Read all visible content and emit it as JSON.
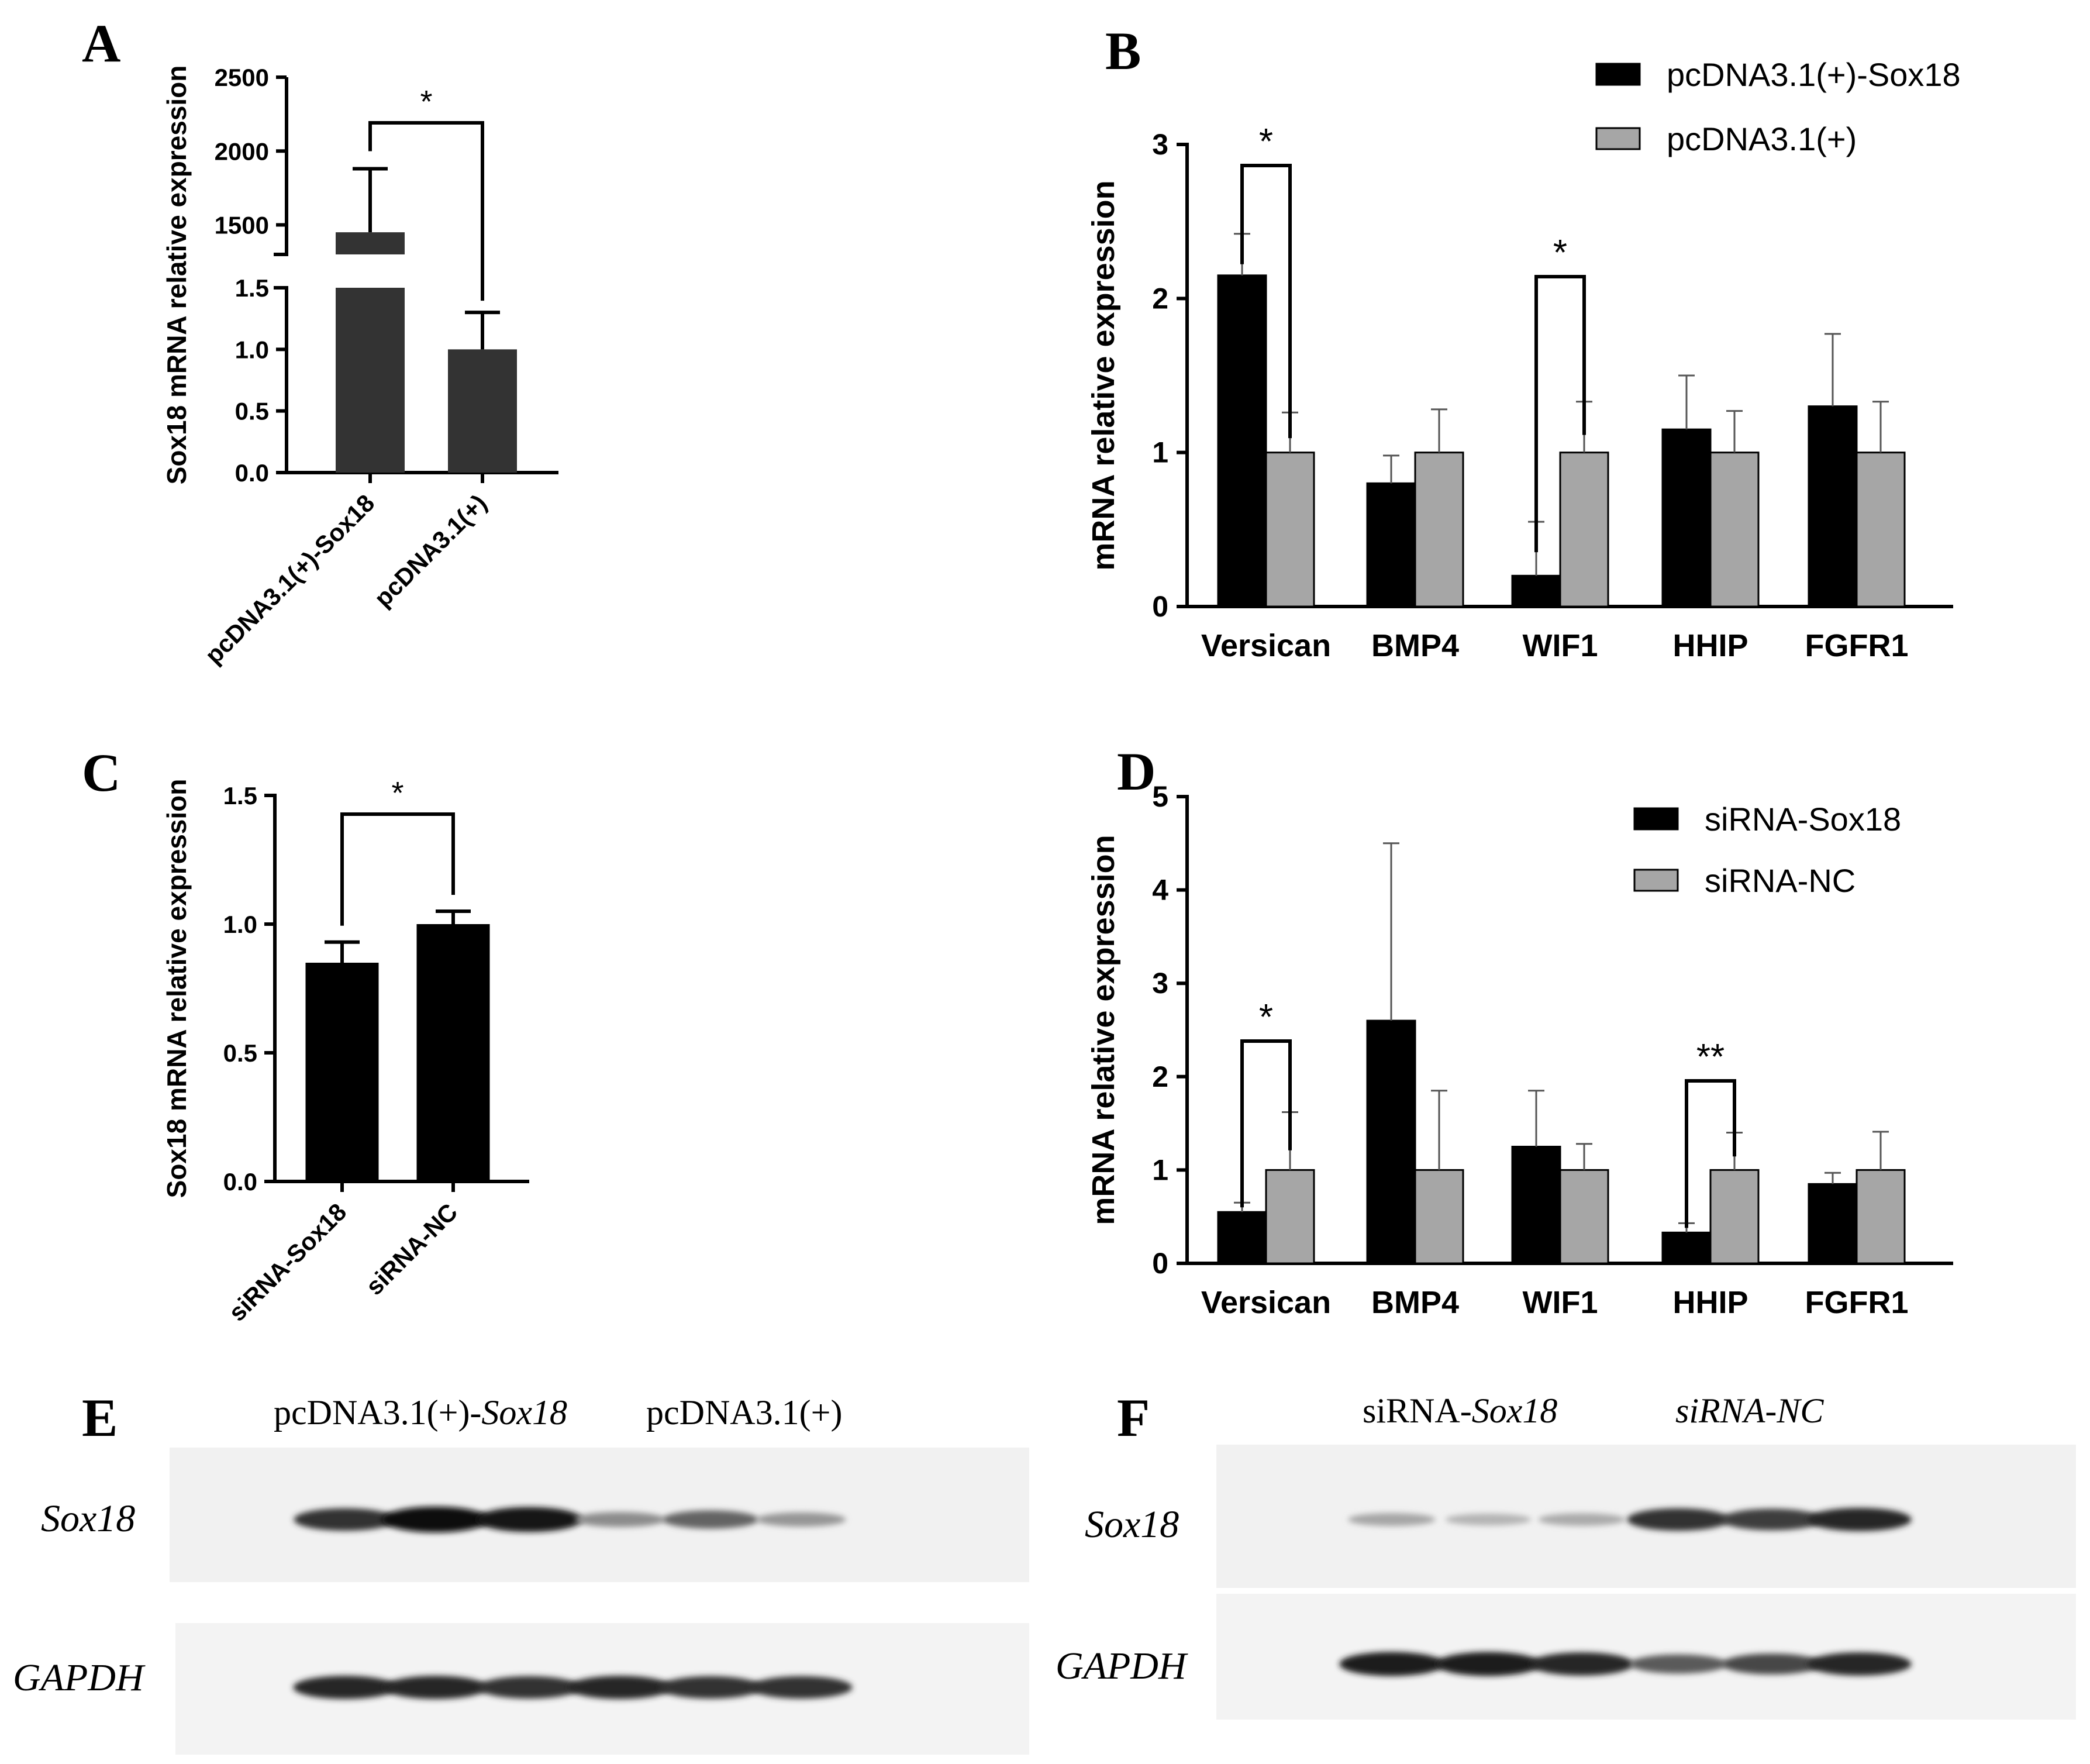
{
  "panels": {
    "A": {
      "label": "A"
    },
    "B": {
      "label": "B"
    },
    "C": {
      "label": "C"
    },
    "D": {
      "label": "D"
    },
    "E": {
      "label": "E"
    },
    "F": {
      "label": "F"
    }
  },
  "chart_data": [
    {
      "id": "A",
      "type": "bar",
      "ylabel": "Sox18 mRNA relative expression",
      "categories": [
        "pcDNA3.1(+)-Sox18",
        "pcDNA3.1(+)"
      ],
      "values": [
        1450,
        1.0
      ],
      "errors": [
        430,
        0.3
      ],
      "axis_break": true,
      "lower_ylim": [
        0,
        1.5
      ],
      "lower_ticks": [
        "0.0",
        "0.5",
        "1.0",
        "1.5"
      ],
      "upper_ylim": [
        1300,
        2500
      ],
      "upper_ticks": [
        "1500",
        "2000",
        "2500"
      ],
      "significance": [
        {
          "pair": [
            0,
            1
          ],
          "label": "*"
        }
      ],
      "colors": [
        "#333333",
        "#333333"
      ]
    },
    {
      "id": "B",
      "type": "bar",
      "ylabel": "mRNA relative expression",
      "categories": [
        "Versican",
        "BMP4",
        "WIF1",
        "HHIP",
        "FGFR1"
      ],
      "ylim": [
        0,
        3
      ],
      "ticks": [
        "0",
        "1",
        "2",
        "3"
      ],
      "series": [
        {
          "name": "pcDNA3.1(+)-Sox18",
          "values": [
            2.15,
            0.8,
            0.2,
            1.15,
            1.3
          ],
          "errors": [
            0.27,
            0.18,
            0.35,
            0.35,
            0.47
          ],
          "color": "#000000"
        },
        {
          "name": "pcDNA3.1(+)",
          "values": [
            1.0,
            1.0,
            1.0,
            1.0,
            1.0
          ],
          "errors": [
            0.26,
            0.28,
            0.33,
            0.27,
            0.33
          ],
          "color": "#a6a6a6"
        }
      ],
      "significance": [
        {
          "category": 0,
          "label": "*"
        },
        {
          "category": 2,
          "label": "*"
        }
      ],
      "legend": "top-right"
    },
    {
      "id": "C",
      "type": "bar",
      "ylabel": "Sox18 mRNA relative expression",
      "categories": [
        "siRNA-Sox18",
        "siRNA-NC"
      ],
      "values": [
        0.85,
        1.0
      ],
      "errors": [
        0.08,
        0.05
      ],
      "ylim": [
        0,
        1.5
      ],
      "ticks": [
        "0.0",
        "0.5",
        "1.0",
        "1.5"
      ],
      "significance": [
        {
          "pair": [
            0,
            1
          ],
          "label": "*"
        }
      ],
      "colors": [
        "#000000",
        "#000000"
      ]
    },
    {
      "id": "D",
      "type": "bar",
      "ylabel": "mRNA relative expression",
      "categories": [
        "Versican",
        "BMP4",
        "WIF1",
        "HHIP",
        "FGFR1"
      ],
      "ylim": [
        0,
        5
      ],
      "ticks": [
        "0",
        "1",
        "2",
        "3",
        "4",
        "5"
      ],
      "series": [
        {
          "name": "siRNA-Sox18",
          "values": [
            0.55,
            2.6,
            1.25,
            0.33,
            0.85
          ],
          "errors": [
            0.1,
            1.9,
            0.6,
            0.1,
            0.12
          ],
          "color": "#000000"
        },
        {
          "name": "siRNA-NC",
          "values": [
            1.0,
            1.0,
            1.0,
            1.0,
            1.0
          ],
          "errors": [
            0.62,
            0.85,
            0.28,
            0.4,
            0.41
          ],
          "color": "#a6a6a6"
        }
      ],
      "significance": [
        {
          "category": 0,
          "label": "*"
        },
        {
          "category": 3,
          "label": "**"
        }
      ],
      "legend": "top-right"
    }
  ],
  "blots": {
    "E": {
      "group1_prefix": "pcDNA3.1(+)-",
      "group1_gene": "Sox18",
      "group2": "pcDNA3.1(+)",
      "rows": [
        {
          "label": "Sox18",
          "intensity": [
            0.8,
            1.0,
            0.95,
            0.35,
            0.55,
            0.3
          ]
        },
        {
          "label": "GAPDH",
          "intensity": [
            0.85,
            0.85,
            0.8,
            0.85,
            0.8,
            0.8
          ]
        }
      ]
    },
    "F": {
      "group1_prefix": "siRNA-",
      "group1_gene": "Sox18",
      "group2": "siRNA-NC",
      "rows": [
        {
          "label": "Sox18",
          "intensity": [
            0.22,
            0.15,
            0.2,
            0.8,
            0.75,
            0.85
          ]
        },
        {
          "label": "GAPDH",
          "intensity": [
            0.9,
            0.9,
            0.85,
            0.6,
            0.7,
            0.85
          ]
        }
      ]
    }
  }
}
